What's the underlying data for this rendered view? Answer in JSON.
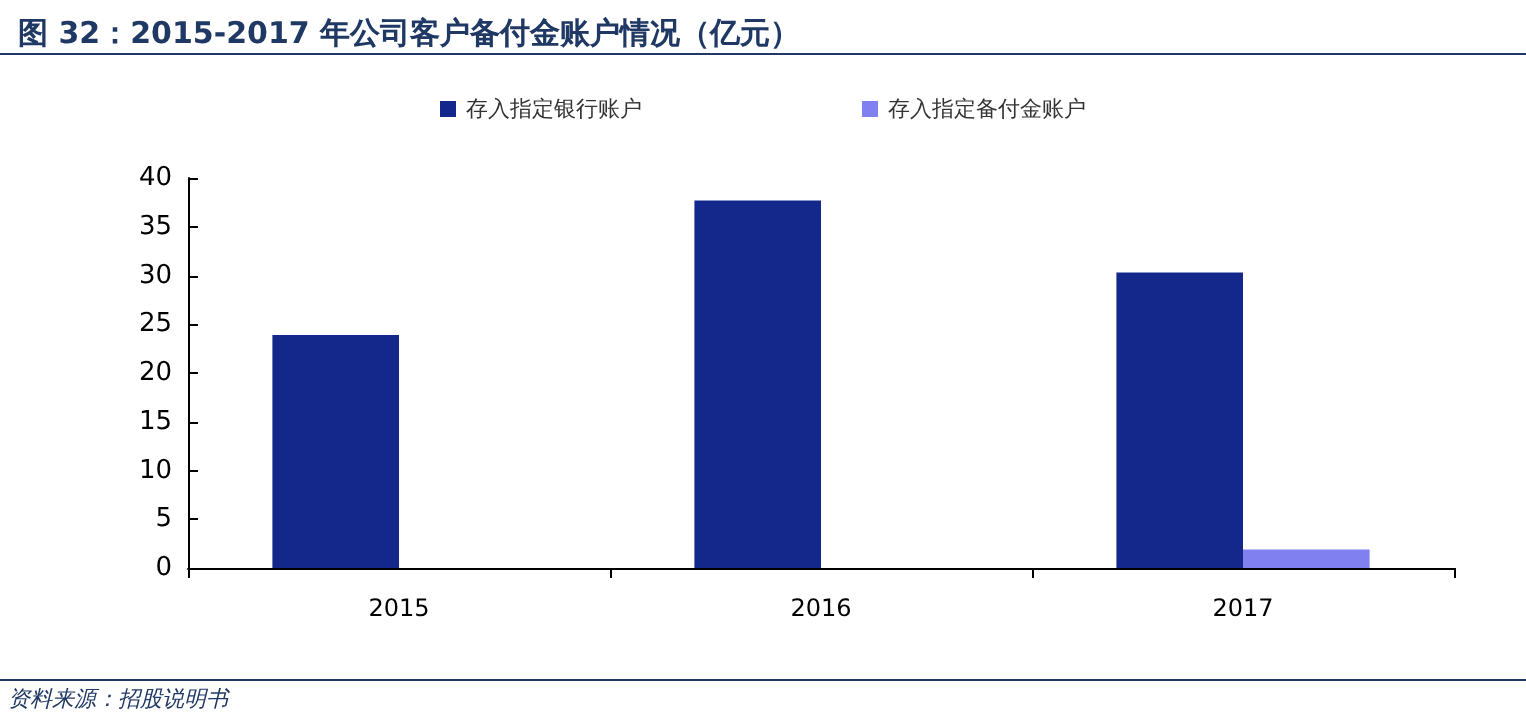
{
  "chart_data": {
    "type": "bar",
    "title": "图 32：2015-2017 年公司客户备付金账户情况（亿元）",
    "categories": [
      "2015",
      "2016",
      "2017"
    ],
    "series": [
      {
        "name": "存入指定银行账户",
        "color": "#14288c",
        "values": [
          23.9,
          37.7,
          30.3
        ]
      },
      {
        "name": "存入指定备付金账户",
        "color": "#8080f0",
        "values": [
          0,
          0,
          1.9
        ]
      }
    ],
    "ylim": [
      0,
      40
    ],
    "yticks": [
      0,
      5,
      10,
      15,
      20,
      25,
      30,
      35,
      40
    ],
    "grid": false,
    "legend": "top",
    "annotations": [
      "资料来源：招股说明书"
    ]
  }
}
